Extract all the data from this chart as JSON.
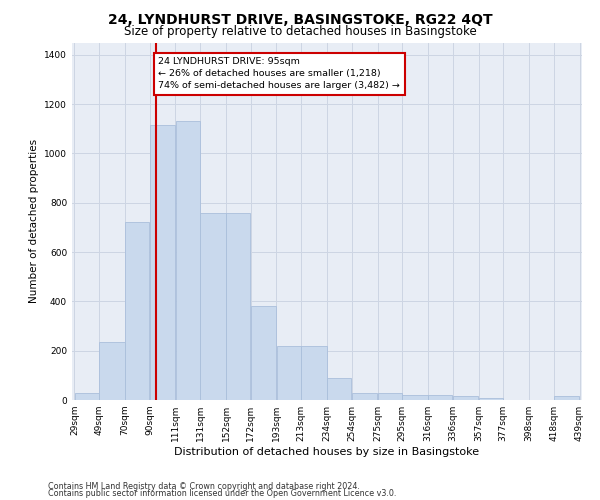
{
  "title": "24, LYNDHURST DRIVE, BASINGSTOKE, RG22 4QT",
  "subtitle": "Size of property relative to detached houses in Basingstoke",
  "xlabel": "Distribution of detached houses by size in Basingstoke",
  "ylabel": "Number of detached properties",
  "footnote1": "Contains HM Land Registry data © Crown copyright and database right 2024.",
  "footnote2": "Contains public sector information licensed under the Open Government Licence v3.0.",
  "bar_color": "#c9d9ed",
  "bar_edge_color": "#aabfdb",
  "grid_color": "#cdd5e3",
  "background_color": "#e8edf5",
  "vline_color": "#cc0000",
  "vline_x": 95,
  "annotation_text": "24 LYNDHURST DRIVE: 95sqm\n← 26% of detached houses are smaller (1,218)\n74% of semi-detached houses are larger (3,482) →",
  "annotation_box_color": "#ffffff",
  "annotation_border_color": "#cc0000",
  "bin_edges": [
    29,
    49,
    70,
    90,
    111,
    131,
    152,
    172,
    193,
    213,
    234,
    254,
    275,
    295,
    316,
    336,
    357,
    377,
    398,
    418,
    439
  ],
  "heights": [
    28,
    235,
    720,
    1115,
    1130,
    760,
    760,
    380,
    220,
    220,
    90,
    28,
    28,
    20,
    20,
    15,
    10,
    0,
    0,
    18
  ],
  "ylim": [
    0,
    1450
  ],
  "yticks": [
    0,
    200,
    400,
    600,
    800,
    1000,
    1200,
    1400
  ],
  "tick_labels": [
    "29sqm",
    "49sqm",
    "70sqm",
    "90sqm",
    "111sqm",
    "131sqm",
    "152sqm",
    "172sqm",
    "193sqm",
    "213sqm",
    "234sqm",
    "254sqm",
    "275sqm",
    "295sqm",
    "316sqm",
    "336sqm",
    "357sqm",
    "377sqm",
    "398sqm",
    "418sqm",
    "439sqm"
  ],
  "title_fontsize": 10,
  "subtitle_fontsize": 8.5,
  "xlabel_fontsize": 8,
  "ylabel_fontsize": 7.5,
  "tick_fontsize": 6.5,
  "annotation_fontsize": 6.8,
  "footnote_fontsize": 5.8
}
